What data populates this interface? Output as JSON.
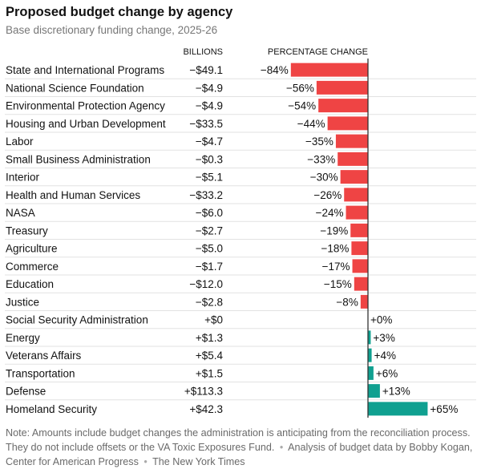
{
  "title": "Proposed budget change by agency",
  "subtitle": "Base discretionary funding change, 2025-26",
  "colors": {
    "negative": "#ef4444",
    "positive": "#10a090",
    "gridline": "#e2e2e2",
    "axis": "#333333",
    "text": "#121212",
    "muted": "#777777"
  },
  "chart_data": {
    "type": "bar",
    "orientation": "horizontal",
    "col_headers": {
      "billions": "BILLIONS",
      "percentage": "PERCENTAGE CHANGE"
    },
    "xlim": [
      -84,
      65
    ],
    "rows": [
      {
        "agency": "State and International Programs",
        "billions": "−$49.1",
        "pct": -84,
        "pct_label": "−84%"
      },
      {
        "agency": "National Science Foundation",
        "billions": "−$4.9",
        "pct": -56,
        "pct_label": "−56%"
      },
      {
        "agency": "Environmental Protection Agency",
        "billions": "−$4.9",
        "pct": -54,
        "pct_label": "−54%"
      },
      {
        "agency": "Housing and Urban Development",
        "billions": "−$33.5",
        "pct": -44,
        "pct_label": "−44%"
      },
      {
        "agency": "Labor",
        "billions": "−$4.7",
        "pct": -35,
        "pct_label": "−35%"
      },
      {
        "agency": "Small Business Administration",
        "billions": "−$0.3",
        "pct": -33,
        "pct_label": "−33%"
      },
      {
        "agency": "Interior",
        "billions": "−$5.1",
        "pct": -30,
        "pct_label": "−30%"
      },
      {
        "agency": "Health and Human Services",
        "billions": "−$33.2",
        "pct": -26,
        "pct_label": "−26%"
      },
      {
        "agency": "NASA",
        "billions": "−$6.0",
        "pct": -24,
        "pct_label": "−24%"
      },
      {
        "agency": "Treasury",
        "billions": "−$2.7",
        "pct": -19,
        "pct_label": "−19%"
      },
      {
        "agency": "Agriculture",
        "billions": "−$5.0",
        "pct": -18,
        "pct_label": "−18%"
      },
      {
        "agency": "Commerce",
        "billions": "−$1.7",
        "pct": -17,
        "pct_label": "−17%"
      },
      {
        "agency": "Education",
        "billions": "−$12.0",
        "pct": -15,
        "pct_label": "−15%"
      },
      {
        "agency": "Justice",
        "billions": "−$2.8",
        "pct": -8,
        "pct_label": "−8%"
      },
      {
        "agency": "Social Security Administration",
        "billions": "+$0",
        "pct": 0,
        "pct_label": "+0%"
      },
      {
        "agency": "Energy",
        "billions": "+$1.3",
        "pct": 3,
        "pct_label": "+3%"
      },
      {
        "agency": "Veterans Affairs",
        "billions": "+$5.4",
        "pct": 4,
        "pct_label": "+4%"
      },
      {
        "agency": "Transportation",
        "billions": "+$1.5",
        "pct": 6,
        "pct_label": "+6%"
      },
      {
        "agency": "Defense",
        "billions": "+$113.3",
        "pct": 13,
        "pct_label": "+13%"
      },
      {
        "agency": "Homeland Security",
        "billions": "+$42.3",
        "pct": 65,
        "pct_label": "+65%"
      }
    ]
  },
  "note": {
    "text": "Note: Amounts include budget changes the administration is anticipating from the reconciliation process. They do not include offsets or the VA Toxic Exposures Fund.",
    "source": "Analysis of budget data by Bobby Kogan, Center for American Progress",
    "credit": "The New York Times",
    "separator": "•"
  }
}
